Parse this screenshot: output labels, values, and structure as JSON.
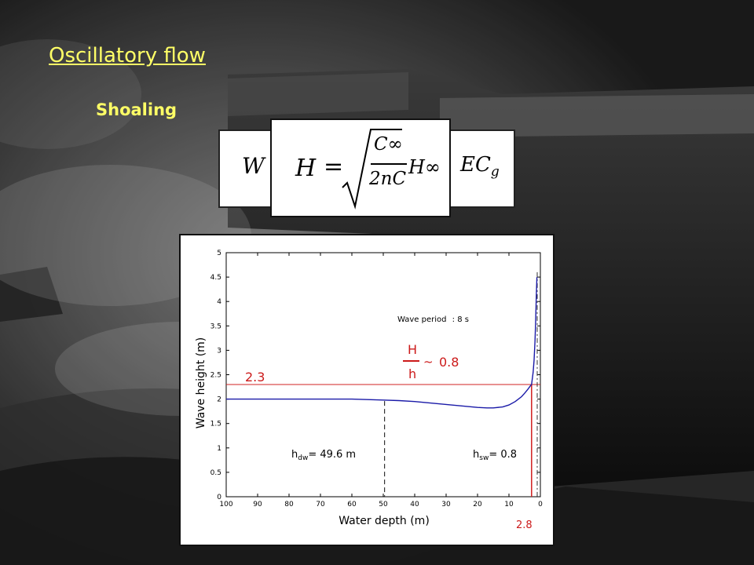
{
  "slide": {
    "title": "Oscillatory flow",
    "subtitle": "Shoaling"
  },
  "equations": {
    "back_left": "W",
    "back_left_op": "=",
    "back_right": "EC",
    "back_right_sub": "g",
    "front_lhs": "H",
    "front_eq": "=",
    "front_num": "C∞",
    "front_den": "2nC",
    "front_tail": "H∞"
  },
  "chart_data": {
    "type": "line",
    "xlabel": "Water depth (m)",
    "ylabel": "Wave height (m)",
    "xlim": [
      100,
      0
    ],
    "ylim": [
      0,
      5
    ],
    "xticks": [
      100,
      90,
      80,
      70,
      60,
      50,
      40,
      30,
      20,
      10,
      0
    ],
    "yticks": [
      0,
      0.5,
      1,
      1.5,
      2,
      2.5,
      3,
      3.5,
      4,
      4.5,
      5
    ],
    "grid": false,
    "series": [
      {
        "x": [
          100,
          90,
          80,
          70,
          60,
          55,
          50,
          45,
          40,
          35,
          30,
          25,
          20,
          17,
          15,
          12,
          10,
          8,
          6,
          5,
          4,
          3.2,
          2.8,
          2.3,
          2.0,
          1.7,
          1.5,
          1.3,
          1.1
        ],
        "y": [
          2.0,
          2.0,
          2.0,
          2.0,
          2.0,
          1.99,
          1.98,
          1.97,
          1.95,
          1.92,
          1.89,
          1.86,
          1.83,
          1.82,
          1.82,
          1.84,
          1.88,
          1.95,
          2.05,
          2.12,
          2.2,
          2.27,
          2.3,
          2.55,
          2.8,
          3.2,
          3.6,
          4.1,
          4.5
        ],
        "color": "#1a1aa8"
      }
    ],
    "reference_lines": {
      "hline_y": 2.3,
      "hline_label": "2.3",
      "vline_red_x": 2.8,
      "vline_red_label": "2.8",
      "vline_dashed_x": 49.6,
      "vline_dashdot_x": 1.0
    },
    "annotations": {
      "period_label": "Wave period",
      "period_value": ": 8 s",
      "ratio_num": "H",
      "ratio_den": "h",
      "ratio_sym": "~",
      "ratio_value": "0.8",
      "hdw_prefix": "h",
      "hdw_sub": "dw",
      "hdw_value": "= 49.6 m",
      "hsw_prefix": "h",
      "hsw_sub": "sw",
      "hsw_value": "= 0.8"
    },
    "colors": {
      "curve": "#1a1aa8",
      "reference": "#d02020",
      "axis": "#000000"
    }
  }
}
